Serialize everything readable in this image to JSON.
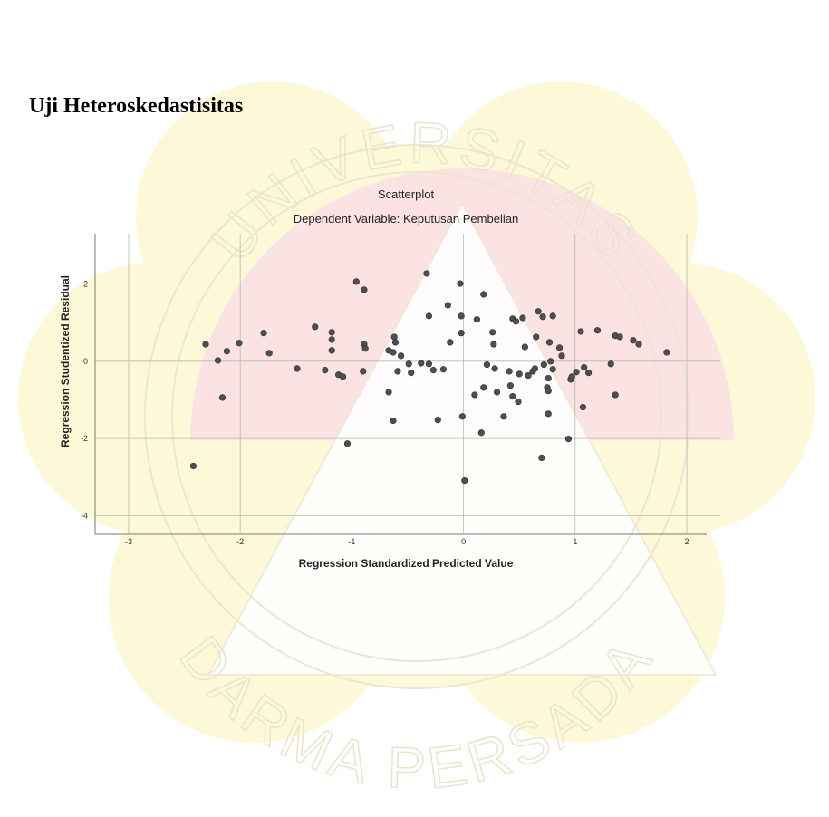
{
  "heading": "Uji Heteroskedastisitas",
  "watermark_top": "UNIVERSITAS",
  "watermark_bottom": "DARMA PERSADA",
  "chart_data": {
    "type": "scatter",
    "title": "Scatterplot",
    "subtitle": "Dependent Variable: Keputusan Pembelian",
    "x_label": "Regression Standardized Predicted Value",
    "y_label": "Regression Studentized Residual",
    "xlim": [
      -3.3,
      2.3
    ],
    "ylim": [
      -4.2,
      3.3
    ],
    "xticks": [
      -3,
      -2,
      -1,
      0,
      1,
      2
    ],
    "yticks": [
      -4,
      -2,
      0,
      2
    ],
    "grid": true,
    "color": "#4f4f4f",
    "x": [
      -2.42,
      -2.31,
      -2.2,
      -2.16,
      -2.12,
      -2.01,
      -1.79,
      -1.74,
      -1.49,
      -1.33,
      -1.24,
      -1.18,
      -1.18,
      -1.18,
      -1.12,
      -1.08,
      -1.04,
      -0.96,
      -0.89,
      -0.89,
      -0.88,
      -0.9,
      -0.67,
      -0.67,
      -0.63,
      -0.63,
      -0.62,
      -0.61,
      -0.59,
      -0.56,
      -0.49,
      -0.47,
      -0.38,
      -0.33,
      -0.31,
      -0.31,
      -0.27,
      -0.23,
      -0.18,
      -0.14,
      -0.12,
      -0.03,
      -0.02,
      -0.02,
      -0.01,
      0.01,
      0.1,
      0.12,
      0.16,
      0.18,
      0.21,
      0.18,
      0.26,
      0.27,
      0.28,
      0.3,
      0.36,
      0.42,
      0.41,
      0.44,
      0.44,
      0.47,
      0.49,
      0.5,
      0.53,
      0.55,
      0.58,
      0.62,
      0.64,
      0.65,
      0.67,
      0.7,
      0.71,
      0.72,
      0.75,
      0.76,
      0.76,
      0.76,
      0.78,
      0.8,
      0.77,
      0.8,
      0.86,
      0.88,
      0.94,
      0.96,
      0.97,
      1.01,
      1.05,
      1.07,
      1.08,
      1.12,
      1.2,
      1.32,
      1.36,
      1.36,
      1.4,
      1.52,
      1.57,
      1.82
    ],
    "y": [
      -2.71,
      0.44,
      0.02,
      -0.94,
      0.26,
      0.47,
      0.73,
      0.21,
      -0.19,
      0.89,
      -0.23,
      0.75,
      0.56,
      0.28,
      -0.35,
      -0.4,
      -2.13,
      2.06,
      1.85,
      0.44,
      0.33,
      -0.26,
      -0.8,
      0.28,
      -1.54,
      0.23,
      0.63,
      0.49,
      -0.26,
      0.14,
      -0.07,
      -0.3,
      -0.05,
      2.27,
      1.17,
      -0.07,
      -0.23,
      -1.52,
      -0.21,
      1.45,
      0.49,
      2.01,
      1.17,
      0.73,
      -1.43,
      -3.09,
      -0.87,
      1.08,
      -1.85,
      1.73,
      -0.09,
      -0.68,
      0.75,
      0.44,
      -0.19,
      -0.8,
      -1.43,
      -0.63,
      -0.26,
      -0.91,
      1.1,
      1.03,
      -1.05,
      -0.33,
      1.12,
      0.37,
      -0.37,
      -0.26,
      -0.19,
      0.63,
      1.29,
      -2.5,
      1.15,
      -0.09,
      -0.68,
      -0.44,
      -0.77,
      -1.36,
      0.0,
      1.17,
      0.49,
      -0.21,
      0.35,
      0.14,
      -2.01,
      -0.47,
      -0.4,
      -0.28,
      0.77,
      -1.19,
      -0.16,
      -0.3,
      0.8,
      -0.07,
      -0.87,
      0.66,
      0.63,
      0.54,
      0.44,
      0.23
    ]
  }
}
